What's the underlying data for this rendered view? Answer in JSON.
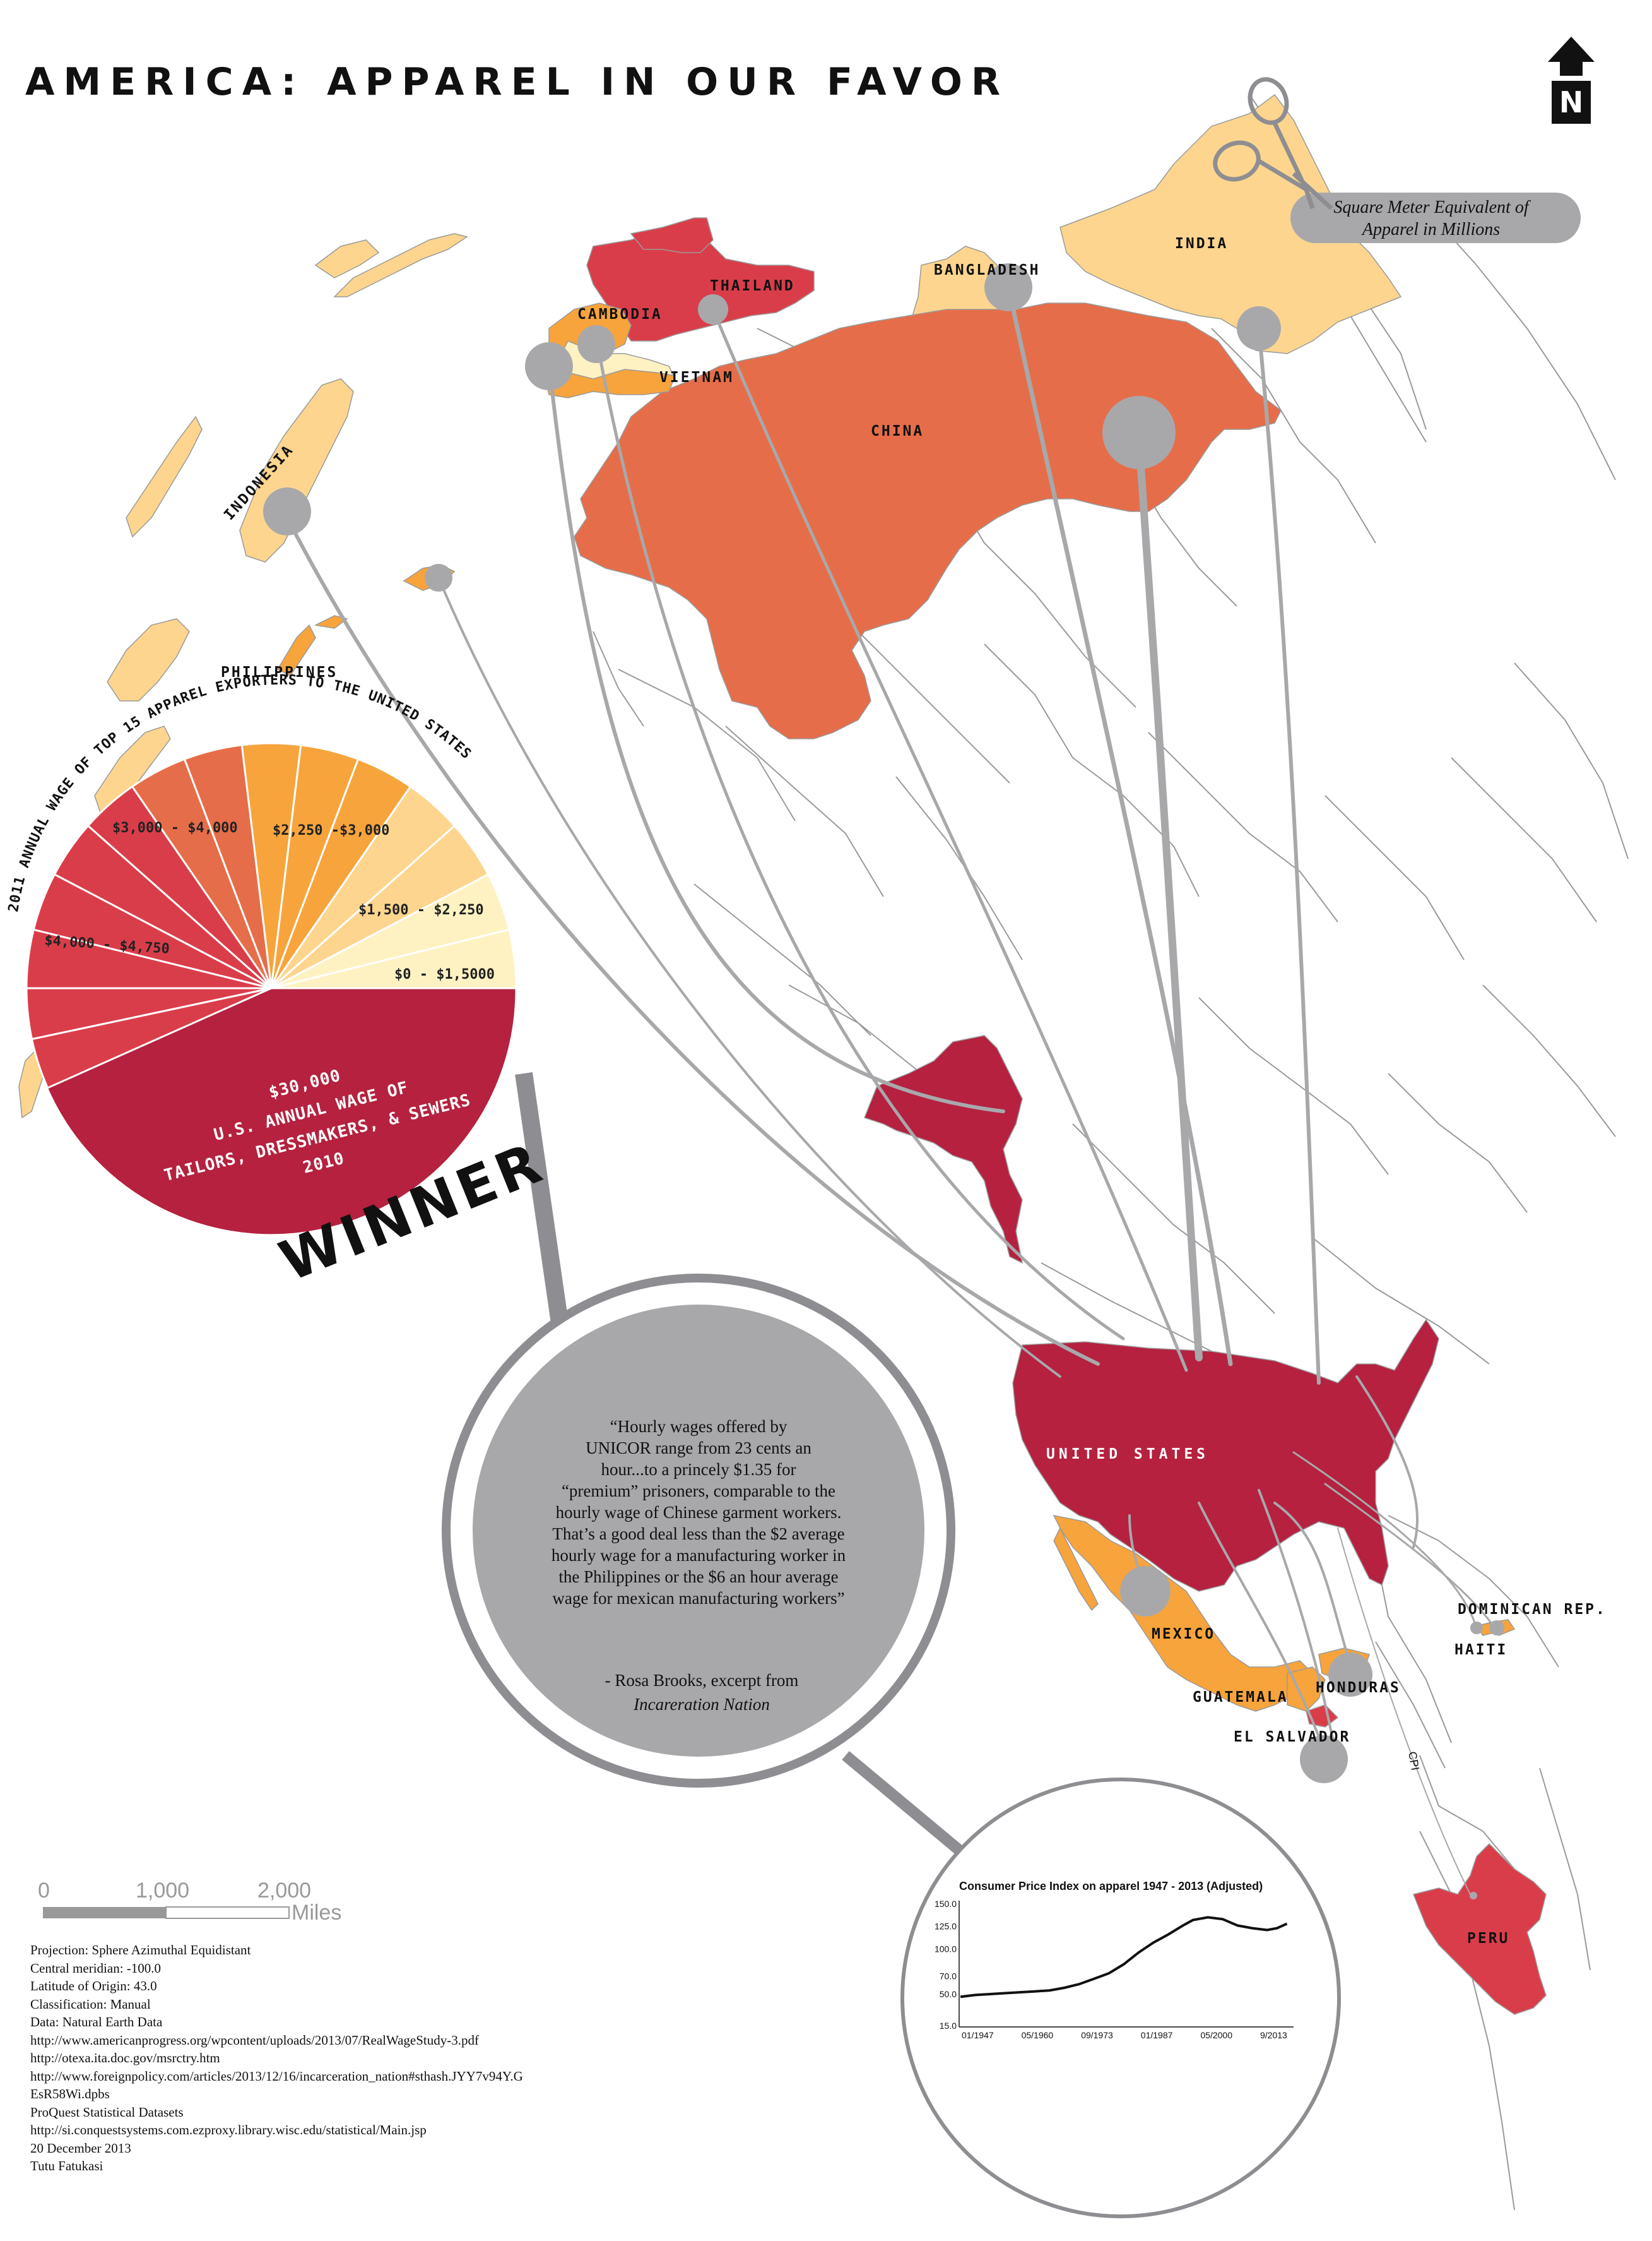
{
  "title": "AMERICA: APPAREL IN OUR FAVOR",
  "north_label": "N",
  "legend": {
    "line1": "Square Meter Equivalent of",
    "line2": "Apparel in Millions"
  },
  "colors": {
    "tier_0_1500": "#fff2c2",
    "tier_1500_2250": "#fdd58e",
    "tier_2250_3000": "#f7a43c",
    "tier_3000_4000": "#e66d49",
    "tier_4000_4750": "#da3d4a",
    "us": "#b5213f",
    "flow": "#a8a8ab"
  },
  "countries": [
    {
      "id": "india",
      "label": "INDIA",
      "tier": "tier_1500_2250"
    },
    {
      "id": "bangladesh",
      "label": "BANGLADESH",
      "tier": "tier_1500_2250"
    },
    {
      "id": "thailand",
      "label": "THAILAND",
      "tier": "tier_4000_4750"
    },
    {
      "id": "cambodia",
      "label": "CAMBODIA",
      "tier": "tier_2250_3000"
    },
    {
      "id": "vietnam",
      "label": "VIETNAM",
      "tier": "tier_2250_3000"
    },
    {
      "id": "china",
      "label": "CHINA",
      "tier": "tier_3000_4000"
    },
    {
      "id": "indonesia",
      "label": "INDONESIA",
      "tier": "tier_1500_2250"
    },
    {
      "id": "philippines",
      "label": "PHILIPPINES",
      "tier": "tier_2250_3000"
    },
    {
      "id": "united_states",
      "label": "UNITED STATES",
      "tier": "us"
    },
    {
      "id": "mexico",
      "label": "MEXICO",
      "tier": "tier_2250_3000"
    },
    {
      "id": "guatemala",
      "label": "GUATEMALA",
      "tier": "tier_2250_3000"
    },
    {
      "id": "honduras",
      "label": "HONDURAS",
      "tier": "tier_2250_3000"
    },
    {
      "id": "el_salvador",
      "label": "EL SALVADOR",
      "tier": "tier_4000_4750"
    },
    {
      "id": "dominican_rep",
      "label": "DOMINICAN REP.",
      "tier": "tier_2250_3000"
    },
    {
      "id": "haiti",
      "label": "HAITI",
      "tier": "tier_2250_3000"
    },
    {
      "id": "peru",
      "label": "PERU",
      "tier": "tier_4000_4750"
    }
  ],
  "map_labels": {
    "cpi_tag": "CPI"
  },
  "pie": {
    "heading": "2011 ANNUAL WAGE OF TOP 15 APPAREL EXPORTERS TO THE UNITED STATES",
    "ranges": [
      "$3,000 - $4,000",
      "$2,250 -$3,000",
      "$1,500 - $2,250",
      "$0 - $1,5000",
      "$4,000 - $4,750"
    ],
    "us_wage": {
      "line1": "$30,000",
      "line2": "U.S. ANNUAL WAGE OF",
      "line3": "TAILORS, DRESSMAKERS, & SEWERS",
      "line4": "2010"
    },
    "winner": "WINNER"
  },
  "quote": {
    "lines": [
      "“Hourly wages offered  by",
      "UNICOR range from 23 cents an",
      "hour...to a princely $1.35 for",
      "“premium” prisoners, comparable to the",
      "hourly wage of Chinese garment workers.",
      "That’s a good deal less than the $2 average",
      "hourly wage for a manufacturing worker in",
      "the Philippines or the $6 an hour average",
      "wage for mexican manufacturing workers”"
    ],
    "attribution": "- Rosa Brooks, excerpt from",
    "source": "Incareration Nation"
  },
  "scale_bar": {
    "ticks": [
      "0",
      "1,000",
      "2,000"
    ],
    "unit": "Miles"
  },
  "metadata": [
    "Projection: Sphere Azimuthal Equidistant",
    "Central meridian: -100.0",
    "Latitude of Origin: 43.0",
    "Classification: Manual",
    "Data: Natural Earth Data",
    "http://www.americanprogress.org/wpcontent/uploads/2013/07/RealWageStudy-3.pdf",
    "http://otexa.ita.doc.gov/msrctry.htm",
    "http://www.foreignpolicy.com/articles/2013/12/16/incarceration_nation#sthash.JYY7v94Y.G",
    "EsR58Wi.dpbs",
    "ProQuest Statistical Datasets",
    "http://si.conquestsystems.com.ezproxy.library.wisc.edu/statistical/Main.jsp",
    "20 December 2013",
    "Tutu Fatukasi"
  ],
  "chart_data": {
    "type": "line",
    "title": "Consumer Price Index on apparel 1947 - 2013  (Adjusted)",
    "xlabel": "",
    "ylabel": "",
    "x_tick_labels": [
      "01/1947",
      "05/1960",
      "09/1973",
      "01/1987",
      "05/2000",
      "9/2013"
    ],
    "y_tick_labels": [
      "15.0",
      "50.0",
      "70.0",
      "100.0",
      "125.0",
      "150.0"
    ],
    "ylim": [
      15,
      150
    ],
    "xlim": [
      1947,
      2013.7
    ],
    "grid": false,
    "series": [
      {
        "name": "",
        "x": [
          1947,
          1950,
          1953,
          1956,
          1959,
          1962,
          1965,
          1968,
          1971,
          1974,
          1977,
          1980,
          1983,
          1986,
          1989,
          1992,
          1994,
          1997,
          2000,
          2003,
          2006,
          2009,
          2011,
          2013
        ],
        "y": [
          47,
          49,
          50,
          51,
          52,
          53,
          54,
          57,
          61,
          67,
          73,
          83,
          96,
          107,
          116,
          126,
          132,
          135,
          133,
          126,
          123,
          121,
          123,
          128
        ]
      }
    ]
  }
}
